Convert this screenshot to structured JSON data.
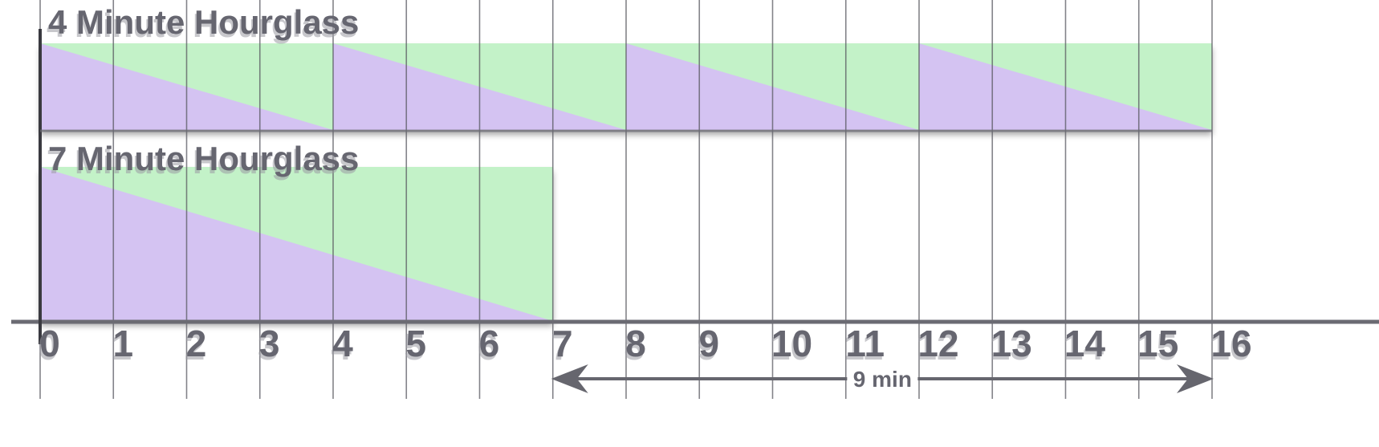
{
  "timeline": {
    "tick_labels": [
      "0",
      "1",
      "2",
      "3",
      "4",
      "5",
      "6",
      "7",
      "8",
      "9",
      "10",
      "11",
      "12",
      "13",
      "14",
      "15",
      "16"
    ],
    "max_minutes": 16
  },
  "hourglasses": [
    {
      "title": "4 Minute Hourglass",
      "duration_minutes": 4,
      "cycles": [
        {
          "start": 0,
          "end": 4
        },
        {
          "start": 4,
          "end": 8
        },
        {
          "start": 8,
          "end": 12
        },
        {
          "start": 12,
          "end": 16
        }
      ]
    },
    {
      "title": "7 Minute Hourglass",
      "duration_minutes": 7,
      "cycles": [
        {
          "start": 0,
          "end": 7
        }
      ]
    }
  ],
  "span": {
    "label": "9 min",
    "start": 7,
    "end": 16
  },
  "colors": {
    "sand_remaining": "#d4c3f2",
    "sand_fallen": "#c3f2c8",
    "gridline": "#5a5a62",
    "axis": "#6b6b73",
    "text": "#666670"
  }
}
